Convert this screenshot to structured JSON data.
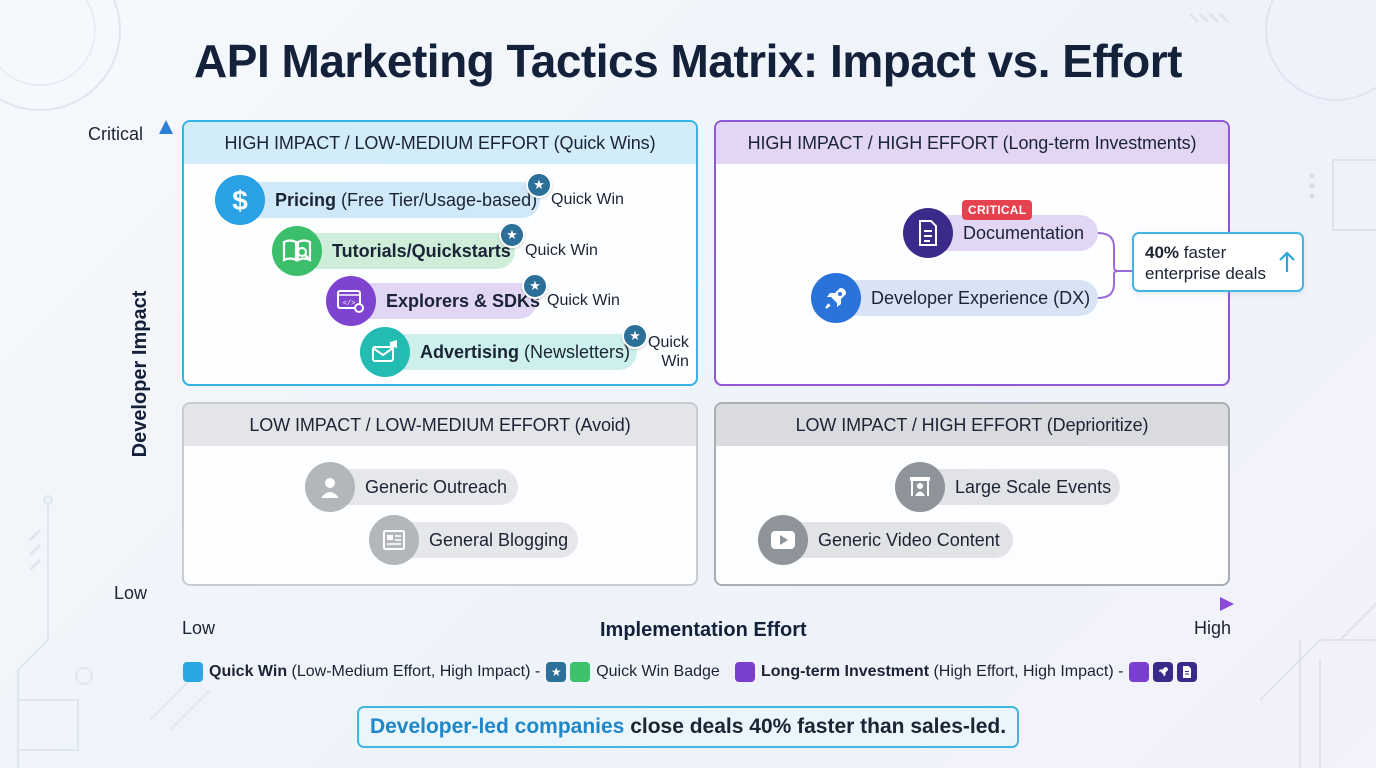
{
  "title": "API Marketing Tactics Matrix: Impact vs. Effort",
  "y_axis": {
    "label": "Developer Impact",
    "top_tick": "Critical",
    "bottom_tick": "Low"
  },
  "x_axis": {
    "label": "Implementation Effort",
    "left_tick": "Low",
    "right_tick": "High"
  },
  "colors": {
    "quick_win": "#29a7e1",
    "quick_win_badge": "#3cc36a",
    "long_term": "#7b3fd0",
    "star": "#2c6f98"
  },
  "quadrants": {
    "top_left": {
      "title": "HIGH IMPACT / LOW-MEDIUM EFFORT (Quick Wins)",
      "items": [
        {
          "bold": "Pricing",
          "rest": " (Free Tier/Usage-based)",
          "badge": "Quick Win",
          "icon": "dollar-icon"
        },
        {
          "bold": "Tutorials/Quickstarts",
          "rest": "",
          "badge": "Quick Win",
          "icon": "book-search-icon"
        },
        {
          "bold": "Explorers & SDKs",
          "rest": "",
          "badge": "Quick Win",
          "icon": "code-gear-icon"
        },
        {
          "bold": "Advertising",
          "rest": " (Newsletters)",
          "badge_line1": "Quick",
          "badge_line2": "Win",
          "icon": "envelope-megaphone-icon"
        }
      ]
    },
    "top_right": {
      "title": "HIGH IMPACT / HIGH EFFORT (Long-term Investments)",
      "items": [
        {
          "label": "Documentation",
          "badge": "CRITICAL",
          "icon": "document-icon"
        },
        {
          "label": "Developer Experience (DX)",
          "icon": "rocket-icon"
        }
      ],
      "callout": {
        "bold": "40%",
        "line1_rest": " faster",
        "line2": "enterprise deals",
        "icon": "arrow-up-icon"
      }
    },
    "bottom_left": {
      "title": "LOW IMPACT / LOW-MEDIUM EFFORT (Avoid)",
      "items": [
        {
          "label": "Generic Outreach",
          "icon": "person-icon"
        },
        {
          "label": "General Blogging",
          "icon": "newspaper-icon"
        }
      ]
    },
    "bottom_right": {
      "title": "LOW IMPACT / HIGH EFFORT (Deprioritize)",
      "items": [
        {
          "label": "Large Scale Events",
          "icon": "stage-event-icon"
        },
        {
          "label": "Generic Video Content",
          "icon": "video-play-icon"
        }
      ]
    }
  },
  "legend": {
    "quick_win_bold": "Quick Win",
    "quick_win_desc": " (Low-Medium Effort, High Impact) -",
    "quick_win_badge": "Quick Win Badge",
    "long_term_bold": "Long-term Investment",
    "long_term_desc": " (High Effort, High Impact) -"
  },
  "banner": {
    "highlight": "Developer-led companies",
    "rest": " close deals 40% faster than sales-led."
  }
}
